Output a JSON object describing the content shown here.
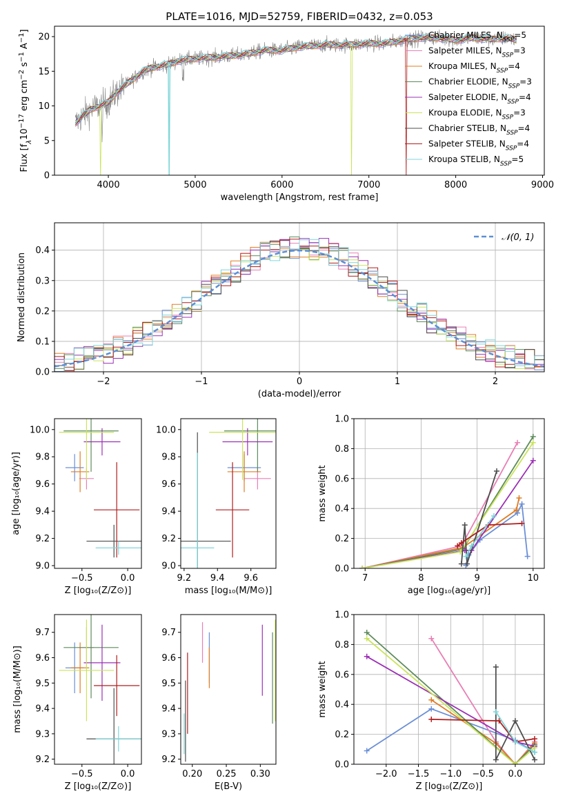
{
  "figure": {
    "title": "PLATE=1016, MJD=52759, FIBERID=0432, z=0.053"
  },
  "colors": {
    "chabrier_miles": "#6a8fd6",
    "salpeter_miles": "#e87fb5",
    "kroupa_miles": "#e07b22",
    "chabrier_elodie": "#5c8a5a",
    "salpeter_elodie": "#9b2fb5",
    "kroupa_elodie": "#c9e35a",
    "chabrier_stelib": "#4d4d4d",
    "salpeter_stelib": "#b01c1c",
    "kroupa_stelib": "#7fd6d9",
    "data": "#808080",
    "normal": "#5b8fd6"
  },
  "chart_data": [
    {
      "id": "spectrum",
      "type": "line",
      "title": "PLATE=1016, MJD=52759, FIBERID=0432, z=0.053",
      "xlabel": "wavelength [Angstrom, rest frame]",
      "ylabel_parts": [
        "Flux [f",
        "λ",
        "10",
        "−17",
        " erg cm",
        "−2",
        " s",
        "−1",
        " A",
        "−1",
        "]"
      ],
      "xlim": [
        3380,
        9020
      ],
      "ylim": [
        0,
        21.5
      ],
      "xticks": [
        4000,
        5000,
        6000,
        7000,
        8000,
        9000
      ],
      "yticks": [
        0,
        5,
        10,
        15,
        20
      ],
      "legend": [
        {
          "name": "Chabrier MILES",
          "ssp": "5"
        },
        {
          "name": "Salpeter MILES",
          "ssp": "3"
        },
        {
          "name": "Kroupa MILES",
          "ssp": "4"
        },
        {
          "name": "Chabrier ELODIE",
          "ssp": "3"
        },
        {
          "name": "Salpeter ELODIE",
          "ssp": "4"
        },
        {
          "name": "Kroupa ELODIE",
          "ssp": "3"
        },
        {
          "name": "Chabrier STELIB",
          "ssp": "4"
        },
        {
          "name": "Salpeter STELIB",
          "ssp": "4"
        },
        {
          "name": "Kroupa STELIB",
          "ssp": "5"
        }
      ],
      "legend_placement": "right",
      "continuum": [
        [
          3620,
          7.5
        ],
        [
          3700,
          8.5
        ],
        [
          3800,
          9.5
        ],
        [
          3900,
          10
        ],
        [
          4000,
          10.5
        ],
        [
          4100,
          12
        ],
        [
          4200,
          13
        ],
        [
          4300,
          14
        ],
        [
          4400,
          15
        ],
        [
          4500,
          15.5
        ],
        [
          4700,
          16
        ],
        [
          4800,
          16.5
        ],
        [
          5000,
          16.8
        ],
        [
          5200,
          17
        ],
        [
          5400,
          17.2
        ],
        [
          5600,
          17.5
        ],
        [
          5800,
          18
        ],
        [
          6000,
          18
        ],
        [
          6200,
          18.5
        ],
        [
          6500,
          18.8
        ],
        [
          6800,
          18.8
        ],
        [
          7000,
          19
        ],
        [
          7200,
          19
        ],
        [
          7400,
          19.5
        ],
        [
          7600,
          19.8
        ],
        [
          7800,
          19.8
        ],
        [
          8000,
          19.5
        ],
        [
          8200,
          19.8
        ],
        [
          8400,
          19.6
        ],
        [
          8600,
          19.8
        ],
        [
          8700,
          19.5
        ]
      ]
    },
    {
      "id": "residuals",
      "type": "histogram",
      "xlabel": "(data-model)/error",
      "ylabel": "Normed distribution",
      "xlim": [
        -2.5,
        2.5
      ],
      "ylim": [
        0,
        0.49
      ],
      "xticks": [
        -2,
        -1,
        0,
        1,
        2
      ],
      "yticks": [
        0.0,
        0.1,
        0.2,
        0.3,
        0.4
      ],
      "legend": "𝒩(0, 1)",
      "legend_placement": "top-right",
      "grid": true
    },
    {
      "id": "age_vs_Z",
      "type": "errorbar",
      "xlabel": "Z [log₁₀(Z/Z⊙)]",
      "ylabel": "age  [log₁₀(age/yr)]",
      "xlim": [
        -0.8,
        0.15
      ],
      "ylim": [
        8.98,
        10.08
      ],
      "xticks": [
        -0.5,
        0.0
      ],
      "yticks": [
        9.0,
        9.2,
        9.4,
        9.6,
        9.8,
        10.0
      ],
      "points": [
        {
          "x": -0.58,
          "xerr": 0.1,
          "y": 9.72,
          "yerr": 0.1,
          "c": "chabrier_miles"
        },
        {
          "x": -0.45,
          "xerr": 0.08,
          "y": 9.64,
          "yerr": 0.08,
          "c": "salpeter_miles"
        },
        {
          "x": -0.52,
          "xerr": 0.1,
          "y": 9.69,
          "yerr": 0.15,
          "c": "kroupa_miles"
        },
        {
          "x": -0.4,
          "xerr": 0.3,
          "y": 9.99,
          "yerr": 0.3,
          "c": "chabrier_elodie"
        },
        {
          "x": -0.28,
          "xerr": 0.2,
          "y": 9.91,
          "yerr": 0.1,
          "c": "salpeter_elodie"
        },
        {
          "x": -0.45,
          "xerr": 0.3,
          "y": 9.98,
          "yerr": 0.35,
          "c": "kroupa_elodie"
        },
        {
          "x": -0.15,
          "xerr": 0.3,
          "y": 9.18,
          "yerr": 0.12,
          "c": "chabrier_stelib"
        },
        {
          "x": -0.12,
          "xerr": 0.25,
          "y": 9.41,
          "yerr": 0.35,
          "c": "salpeter_stelib"
        },
        {
          "x": -0.1,
          "xerr": 0.25,
          "y": 9.13,
          "yerr": 0.05,
          "c": "kroupa_stelib"
        }
      ]
    },
    {
      "id": "age_vs_mass",
      "type": "errorbar",
      "xlabel": "mass [log₁₀(M/M⊙)]",
      "ylabel": "",
      "xlim": [
        9.18,
        9.75
      ],
      "ylim": [
        8.98,
        10.08
      ],
      "xticks": [
        9.2,
        9.4,
        9.6
      ],
      "yticks": [
        9.0,
        9.2,
        9.4,
        9.6,
        9.8,
        10.0
      ],
      "points": [
        {
          "x": 9.56,
          "xerr": 0.1,
          "y": 9.72,
          "yerr": 0.1,
          "c": "chabrier_miles"
        },
        {
          "x": 9.64,
          "xerr": 0.08,
          "y": 9.64,
          "yerr": 0.08,
          "c": "salpeter_miles"
        },
        {
          "x": 9.56,
          "xerr": 0.1,
          "y": 9.69,
          "yerr": 0.15,
          "c": "kroupa_miles"
        },
        {
          "x": 9.64,
          "xerr": 0.2,
          "y": 9.99,
          "yerr": 0.3,
          "c": "chabrier_elodie"
        },
        {
          "x": 9.58,
          "xerr": 0.15,
          "y": 9.91,
          "yerr": 0.1,
          "c": "salpeter_elodie"
        },
        {
          "x": 9.55,
          "xerr": 0.2,
          "y": 9.98,
          "yerr": 0.35,
          "c": "kroupa_elodie"
        },
        {
          "x": 9.28,
          "xerr": 0.2,
          "y": 9.18,
          "yerr": 0.8,
          "c": "chabrier_stelib"
        },
        {
          "x": 9.49,
          "xerr": 0.1,
          "y": 9.41,
          "yerr": 0.35,
          "c": "salpeter_stelib"
        },
        {
          "x": 9.28,
          "xerr": 0.1,
          "y": 9.13,
          "yerr": 0.7,
          "c": "kroupa_stelib"
        }
      ]
    },
    {
      "id": "weight_vs_age",
      "type": "line",
      "xlabel": "age  [log₁₀(age/yr)]",
      "ylabel": "mass weight",
      "xlim": [
        6.8,
        10.2
      ],
      "ylim": [
        0,
        1.0
      ],
      "xticks": [
        7,
        8,
        9,
        10
      ],
      "yticks": [
        0.0,
        0.2,
        0.4,
        0.6,
        0.8,
        1.0
      ],
      "grid": true,
      "series": [
        {
          "c": "chabrier_miles",
          "x": [
            8.8,
            8.85,
            9.05,
            9.72,
            9.8,
            9.9
          ],
          "y": [
            0.02,
            0.09,
            0.19,
            0.37,
            0.43,
            0.08
          ]
        },
        {
          "c": "salpeter_miles",
          "x": [
            6.95,
            8.72,
            9.72
          ],
          "y": [
            0.0,
            0.15,
            0.84
          ]
        },
        {
          "c": "kroupa_miles",
          "x": [
            6.95,
            8.75,
            9.7,
            9.75
          ],
          "y": [
            0.0,
            0.14,
            0.39,
            0.47
          ]
        },
        {
          "c": "chabrier_elodie",
          "x": [
            6.95,
            8.75,
            10.0
          ],
          "y": [
            0.0,
            0.13,
            0.88
          ]
        },
        {
          "c": "salpeter_elodie",
          "x": [
            6.95,
            8.78,
            8.9,
            10.0
          ],
          "y": [
            0.0,
            0.12,
            0.12,
            0.72
          ]
        },
        {
          "c": "kroupa_elodie",
          "x": [
            6.95,
            8.7,
            10.0
          ],
          "y": [
            0.0,
            0.11,
            0.84
          ]
        },
        {
          "c": "chabrier_stelib",
          "x": [
            8.72,
            8.78,
            8.82,
            9.35
          ],
          "y": [
            0.03,
            0.29,
            0.03,
            0.65
          ]
        },
        {
          "c": "salpeter_stelib",
          "x": [
            8.65,
            8.72,
            9.2,
            9.8
          ],
          "y": [
            0.15,
            0.17,
            0.29,
            0.3
          ]
        },
        {
          "c": "kroupa_stelib",
          "x": [
            8.8,
            8.9,
            9.3
          ],
          "y": [
            0.08,
            0.15,
            0.35
          ]
        }
      ]
    },
    {
      "id": "mass_vs_Z",
      "type": "errorbar",
      "xlabel": "Z [log₁₀(Z/Z⊙)]",
      "ylabel": "mass [log₁₀(M/M⊙)]",
      "xlim": [
        -0.8,
        0.15
      ],
      "ylim": [
        9.18,
        9.77
      ],
      "xticks": [
        -0.5,
        0.0
      ],
      "yticks": [
        9.2,
        9.3,
        9.4,
        9.5,
        9.6,
        9.7
      ],
      "points": [
        {
          "x": -0.58,
          "xerr": 0.1,
          "y": 9.56,
          "yerr": 0.1,
          "c": "chabrier_miles"
        },
        {
          "x": -0.45,
          "xerr": 0.08,
          "y": 9.64,
          "yerr": 0.08,
          "c": "salpeter_miles"
        },
        {
          "x": -0.52,
          "xerr": 0.1,
          "y": 9.56,
          "yerr": 0.1,
          "c": "kroupa_miles"
        },
        {
          "x": -0.4,
          "xerr": 0.3,
          "y": 9.64,
          "yerr": 0.2,
          "c": "chabrier_elodie"
        },
        {
          "x": -0.28,
          "xerr": 0.2,
          "y": 9.58,
          "yerr": 0.15,
          "c": "salpeter_elodie"
        },
        {
          "x": -0.45,
          "xerr": 0.3,
          "y": 9.55,
          "yerr": 0.2,
          "c": "kroupa_elodie"
        },
        {
          "x": -0.15,
          "xerr": 0.3,
          "y": 9.28,
          "yerr": 0.2,
          "c": "chabrier_stelib"
        },
        {
          "x": -0.12,
          "xerr": 0.25,
          "y": 9.49,
          "yerr": 0.12,
          "c": "salpeter_stelib"
        },
        {
          "x": -0.1,
          "xerr": 0.25,
          "y": 9.28,
          "yerr": 0.05,
          "c": "kroupa_stelib"
        }
      ]
    },
    {
      "id": "mass_vs_ebv",
      "type": "errorbar",
      "xlabel": "E(B-V)",
      "ylabel": "",
      "xlim": [
        0.183,
        0.323
      ],
      "ylim": [
        9.18,
        9.77
      ],
      "xticks": [
        0.2,
        0.25,
        0.3
      ],
      "yticks": [
        9.2,
        9.3,
        9.4,
        9.5,
        9.6,
        9.7
      ],
      "points": [
        {
          "x": 0.225,
          "y": 9.6,
          "yerr": 0.1,
          "c": "chabrier_miles"
        },
        {
          "x": 0.215,
          "y": 9.66,
          "yerr": 0.08,
          "c": "salpeter_miles"
        },
        {
          "x": 0.225,
          "y": 9.56,
          "yerr": 0.08,
          "c": "kroupa_miles"
        },
        {
          "x": 0.318,
          "y": 9.52,
          "yerr": 0.18,
          "c": "chabrier_elodie"
        },
        {
          "x": 0.303,
          "y": 9.59,
          "yerr": 0.14,
          "c": "salpeter_elodie"
        },
        {
          "x": 0.322,
          "y": 9.55,
          "yerr": 0.2,
          "c": "kroupa_elodie"
        },
        {
          "x": 0.19,
          "y": 9.35,
          "yerr": 0.16,
          "c": "chabrier_stelib"
        },
        {
          "x": 0.193,
          "y": 9.46,
          "yerr": 0.16,
          "c": "salpeter_stelib"
        },
        {
          "x": 0.188,
          "y": 9.3,
          "yerr": 0.08,
          "c": "kroupa_stelib"
        }
      ]
    },
    {
      "id": "weight_vs_Z",
      "type": "line",
      "xlabel": "Z [log₁₀(Z/Z⊙)]",
      "ylabel": "mass weight",
      "xlim": [
        -2.5,
        0.45
      ],
      "ylim": [
        0,
        1.0
      ],
      "xticks": [
        -2.0,
        -1.5,
        -1.0,
        -0.5,
        0.0
      ],
      "yticks": [
        0.0,
        0.2,
        0.4,
        0.6,
        0.8,
        1.0
      ],
      "grid": true,
      "series": [
        {
          "c": "chabrier_miles",
          "x": [
            -2.3,
            -1.3,
            0.0,
            0.3
          ],
          "y": [
            0.09,
            0.37,
            0.16,
            0.08
          ]
        },
        {
          "c": "salpeter_miles",
          "x": [
            -1.3,
            -0.3,
            0.0,
            0.3
          ],
          "y": [
            0.84,
            0.15,
            0.0,
            0.15
          ]
        },
        {
          "c": "kroupa_miles",
          "x": [
            -1.3,
            -0.3,
            0.0,
            0.3
          ],
          "y": [
            0.43,
            0.14,
            0.0,
            0.14
          ]
        },
        {
          "c": "chabrier_elodie",
          "x": [
            -2.3,
            0.0,
            0.3
          ],
          "y": [
            0.88,
            0.0,
            0.13
          ]
        },
        {
          "c": "salpeter_elodie",
          "x": [
            -2.3,
            0.0,
            0.3
          ],
          "y": [
            0.72,
            0.15,
            0.12
          ]
        },
        {
          "c": "kroupa_elodie",
          "x": [
            -2.3,
            0.0,
            0.3
          ],
          "y": [
            0.84,
            0.0,
            0.11
          ]
        },
        {
          "c": "chabrier_stelib",
          "x": [
            -0.3,
            -0.3,
            0.0,
            0.3
          ],
          "y": [
            0.65,
            0.03,
            0.29,
            0.03
          ]
        },
        {
          "c": "salpeter_stelib",
          "x": [
            -1.3,
            -0.25,
            0.0,
            0.3
          ],
          "y": [
            0.3,
            0.29,
            0.15,
            0.17
          ]
        },
        {
          "c": "kroupa_stelib",
          "x": [
            -0.3,
            0.0,
            0.3
          ],
          "y": [
            0.35,
            0.15,
            0.08
          ]
        }
      ]
    }
  ]
}
